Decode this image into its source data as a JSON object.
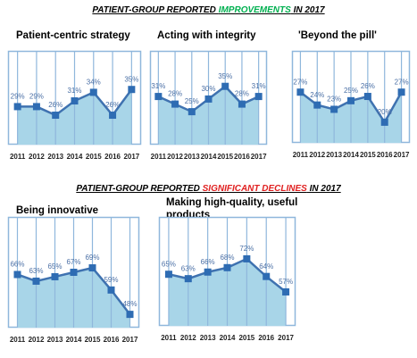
{
  "headings": [
    {
      "lead": "PATIENT-GROUP REPORTED ",
      "highlight": "IMPROVEMENTS",
      "tail": " IN 2017",
      "highlight_color": "#00b050"
    },
    {
      "lead": "PATIENT-GROUP REPORTED ",
      "highlight": "SIGNIFICANT DECLINES",
      "tail": " IN 2017",
      "highlight_color": "#e02020"
    }
  ],
  "chart_data": [
    {
      "type": "area",
      "title": "Patient-centric strategy",
      "categories": [
        "2011",
        "2012",
        "2013",
        "2014",
        "2015",
        "2016",
        "2017"
      ],
      "values": [
        29,
        29,
        26,
        31,
        34,
        26,
        35
      ],
      "value_labels": [
        "29%",
        "29%",
        "26%",
        "31%",
        "34%",
        "26%",
        "35%"
      ],
      "ylim": [
        15.7,
        48.5
      ],
      "color": "#3f72b0",
      "area_color": "#a8d5e8",
      "grid": true
    },
    {
      "type": "area",
      "title": "Acting with integrity",
      "categories": [
        "2011",
        "2012",
        "2013",
        "2014",
        "2015",
        "2016",
        "2017"
      ],
      "values": [
        31,
        28,
        25,
        30,
        35,
        28,
        31
      ],
      "value_labels": [
        "31%",
        "28%",
        "25%",
        "30%",
        "35%",
        "28%",
        "31%"
      ],
      "ylim": [
        12,
        49
      ],
      "color": "#3f72b0",
      "area_color": "#a8d5e8",
      "grid": true
    },
    {
      "type": "area",
      "title": "'Beyond the pill'",
      "categories": [
        "2011",
        "2012",
        "2013",
        "2014",
        "2015",
        "2016",
        "2017"
      ],
      "values": [
        27,
        24,
        23,
        25,
        26,
        20,
        27
      ],
      "value_labels": [
        "27%",
        "24%",
        "23%",
        "25%",
        "26%",
        "20%",
        "27%"
      ],
      "ylim": [
        15.2,
        36.6
      ],
      "color": "#3f72b0",
      "area_color": "#a8d5e8",
      "grid": true
    },
    {
      "type": "area",
      "title": "Being innovative",
      "categories": [
        "2011",
        "2012",
        "2013",
        "2014",
        "2015",
        "2016",
        "2017"
      ],
      "values": [
        66,
        63,
        65,
        67,
        69,
        59,
        48
      ],
      "value_labels": [
        "66%",
        "63%",
        "65%",
        "67%",
        "69%",
        "59%",
        "48%"
      ],
      "ylim": [
        42,
        92
      ],
      "color": "#3f72b0",
      "area_color": "#a8d5e8",
      "grid": true
    },
    {
      "type": "area",
      "title": "Making high-quality, useful products",
      "categories": [
        "2011",
        "2012",
        "2013",
        "2014",
        "2015",
        "2016",
        "2017"
      ],
      "values": [
        65,
        63,
        66,
        68,
        72,
        64,
        57
      ],
      "value_labels": [
        "65%",
        "63%",
        "66%",
        "68%",
        "72%",
        "64%",
        "57%"
      ],
      "ylim": [
        41.6,
        91
      ],
      "color": "#3f72b0",
      "area_color": "#a8d5e8",
      "grid": true
    }
  ]
}
